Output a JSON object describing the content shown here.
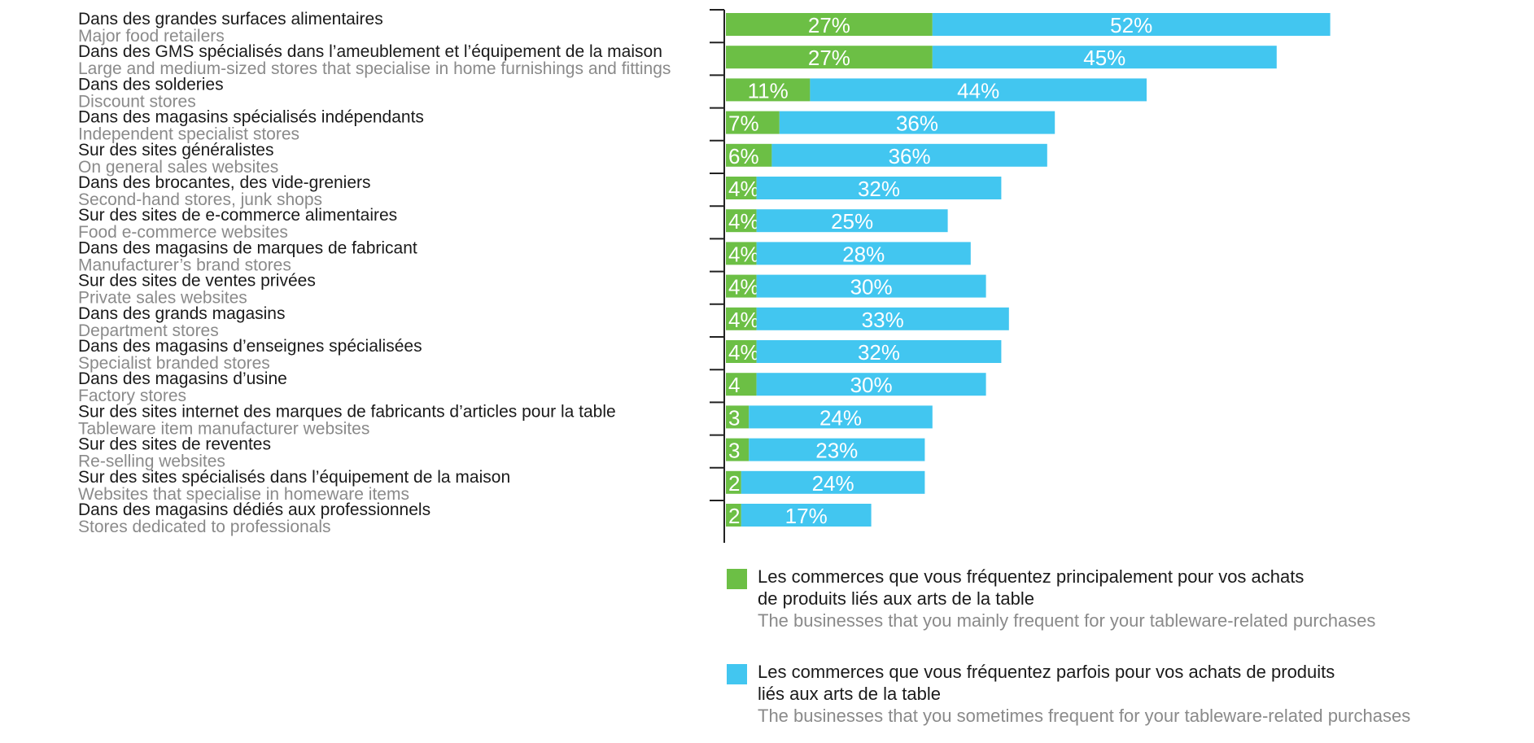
{
  "chart_data": {
    "type": "bar",
    "orientation": "horizontal",
    "stacked": true,
    "grid": false,
    "legend_position": "bottom",
    "categories": [
      {
        "fr": "Dans des grandes surfaces alimentaires",
        "en": "Major food retailers"
      },
      {
        "fr": "Dans des GMS spécialisés dans l’ameublement et l’équipement de la maison",
        "en": "Large and medium-sized stores that specialise in home furnishings and fittings"
      },
      {
        "fr": "Dans des solderies",
        "en": "Discount stores"
      },
      {
        "fr": "Dans des magasins spécialisés indépendants",
        "en": "Independent specialist stores"
      },
      {
        "fr": "Sur des sites généralistes",
        "en": "On general sales websites"
      },
      {
        "fr": "Dans des brocantes, des vide-greniers",
        "en": "Second-hand stores, junk shops"
      },
      {
        "fr": "Sur des sites de e-commerce alimentaires",
        "en": "Food e-commerce websites"
      },
      {
        "fr": "Dans des magasins de marques de fabricant",
        "en": "Manufacturer’s brand stores"
      },
      {
        "fr": "Sur des sites de ventes privées",
        "en": "Private sales websites"
      },
      {
        "fr": "Dans des grands magasins",
        "en": "Department stores"
      },
      {
        "fr": "Dans des magasins d’enseignes spécialisées",
        "en": "Specialist branded stores"
      },
      {
        "fr": "Dans des magasins d’usine",
        "en": "Factory stores"
      },
      {
        "fr": "Sur des sites internet des marques de fabricants d’articles pour la table",
        "en": "Tableware item manufacturer websites"
      },
      {
        "fr": "Sur des sites de reventes",
        "en": "Re-selling websites"
      },
      {
        "fr": "Sur des sites spécialisés dans l’équipement de la maison",
        "en": "Websites that specialise in homeware items"
      },
      {
        "fr": "Dans des magasins dédiés aux professionnels",
        "en": "Stores dedicated to professionals"
      }
    ],
    "series": [
      {
        "key": "main",
        "color": "#6cbf45",
        "legend_fr": [
          "Les commerces que vous fréquentez principalement pour vos achats",
          "de produits liés aux arts de la table"
        ],
        "legend_en": "The businesses that you mainly frequent for your tableware-related purchases",
        "values": [
          27,
          27,
          11,
          7,
          6,
          4,
          4,
          4,
          4,
          4,
          4,
          4,
          3,
          3,
          2,
          2
        ],
        "labels": [
          "27%",
          "27%",
          "11%",
          "7%",
          "6%",
          "4%",
          "4%",
          "4%",
          "4%",
          "4%",
          "4%",
          "4",
          "3",
          "3",
          "2",
          "2"
        ]
      },
      {
        "key": "sometimes",
        "color": "#42c6f0",
        "legend_fr": [
          "Les commerces que vous fréquentez parfois pour vos achats de produits",
          "liés aux arts de la table"
        ],
        "legend_en": "The businesses that you sometimes frequent for your tableware-related purchases",
        "values": [
          52,
          45,
          44,
          36,
          36,
          32,
          25,
          28,
          30,
          33,
          32,
          30,
          24,
          23,
          24,
          17
        ],
        "labels": [
          "52%",
          "45%",
          "44%",
          "36%",
          "36%",
          "32%",
          "25%",
          "28%",
          "30%",
          "33%",
          "32%",
          "30%",
          "24%",
          "23%",
          "24%",
          "17%"
        ]
      }
    ]
  }
}
